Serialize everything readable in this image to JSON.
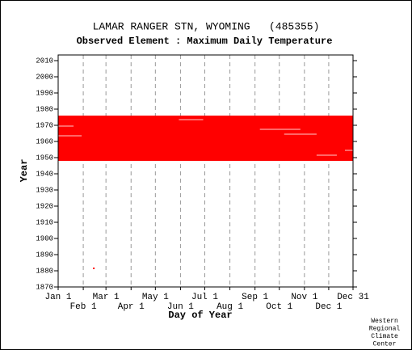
{
  "chart_data": {
    "type": "availability",
    "title": "LAMAR RANGER STN, WYOMING   (485355)",
    "subtitle": "Observed Element : Maximum Daily Temperature",
    "xlabel": "Day of Year",
    "ylabel": "Year",
    "credit": [
      "Western",
      "Regional",
      "Climate",
      "Center"
    ],
    "color": "#ff0000",
    "gap_color": "#ffffff",
    "xlim": [
      1,
      365
    ],
    "ylim": [
      1870,
      2013.5
    ],
    "xticks": [
      {
        "value": 1,
        "label": "Jan 1"
      },
      {
        "value": 32,
        "label": "Feb 1"
      },
      {
        "value": 60,
        "label": "Mar 1"
      },
      {
        "value": 91,
        "label": "Apr 1"
      },
      {
        "value": 121,
        "label": "May 1"
      },
      {
        "value": 152,
        "label": "Jun 1"
      },
      {
        "value": 182,
        "label": "Jul 1"
      },
      {
        "value": 213,
        "label": "Aug 1"
      },
      {
        "value": 244,
        "label": "Sep 1"
      },
      {
        "value": 274,
        "label": "Oct 1"
      },
      {
        "value": 305,
        "label": "Nov 1"
      },
      {
        "value": 335,
        "label": "Dec 1"
      },
      {
        "value": 365,
        "label": "Dec 31"
      }
    ],
    "yticks": [
      1870,
      1880,
      1890,
      1900,
      1910,
      1920,
      1930,
      1940,
      1950,
      1960,
      1970,
      1980,
      1990,
      2000,
      2010
    ],
    "grid": true,
    "rows": [
      {
        "year": 1881,
        "start": 44,
        "end": 46
      },
      {
        "year": 1948,
        "start": 1,
        "end": 365
      },
      {
        "year": 1949,
        "start": 1,
        "end": 365
      },
      {
        "year": 1950,
        "start": 1,
        "end": 365
      },
      {
        "year": 1951,
        "start": 1,
        "end": 365
      },
      {
        "year": 1952,
        "start": 1,
        "end": 365
      },
      {
        "year": 1953,
        "start": 1,
        "end": 365
      },
      {
        "year": 1954,
        "start": 1,
        "end": 365
      },
      {
        "year": 1955,
        "start": 1,
        "end": 365
      },
      {
        "year": 1956,
        "start": 1,
        "end": 365
      },
      {
        "year": 1957,
        "start": 1,
        "end": 365
      },
      {
        "year": 1958,
        "start": 1,
        "end": 365
      },
      {
        "year": 1959,
        "start": 1,
        "end": 365
      },
      {
        "year": 1960,
        "start": 1,
        "end": 365
      },
      {
        "year": 1961,
        "start": 1,
        "end": 365
      },
      {
        "year": 1962,
        "start": 1,
        "end": 365
      },
      {
        "year": 1963,
        "start": 1,
        "end": 365
      },
      {
        "year": 1964,
        "start": 1,
        "end": 365
      },
      {
        "year": 1965,
        "start": 1,
        "end": 365
      },
      {
        "year": 1966,
        "start": 1,
        "end": 365
      },
      {
        "year": 1967,
        "start": 1,
        "end": 365
      },
      {
        "year": 1968,
        "start": 1,
        "end": 365
      },
      {
        "year": 1969,
        "start": 1,
        "end": 365
      },
      {
        "year": 1970,
        "start": 1,
        "end": 365
      },
      {
        "year": 1971,
        "start": 1,
        "end": 365
      },
      {
        "year": 1972,
        "start": 1,
        "end": 365
      },
      {
        "year": 1973,
        "start": 1,
        "end": 365
      },
      {
        "year": 1974,
        "start": 1,
        "end": 365
      },
      {
        "year": 1975,
        "start": 1,
        "end": 365
      }
    ],
    "gaps": [
      {
        "year": 1973,
        "start": 150,
        "end": 180
      },
      {
        "year": 1969,
        "start": 1,
        "end": 20
      },
      {
        "year": 1967,
        "start": 250,
        "end": 300
      },
      {
        "year": 1964,
        "start": 280,
        "end": 320
      },
      {
        "year": 1963,
        "start": 1,
        "end": 30
      },
      {
        "year": 1954,
        "start": 355,
        "end": 365
      },
      {
        "year": 1951,
        "start": 320,
        "end": 345
      }
    ]
  }
}
